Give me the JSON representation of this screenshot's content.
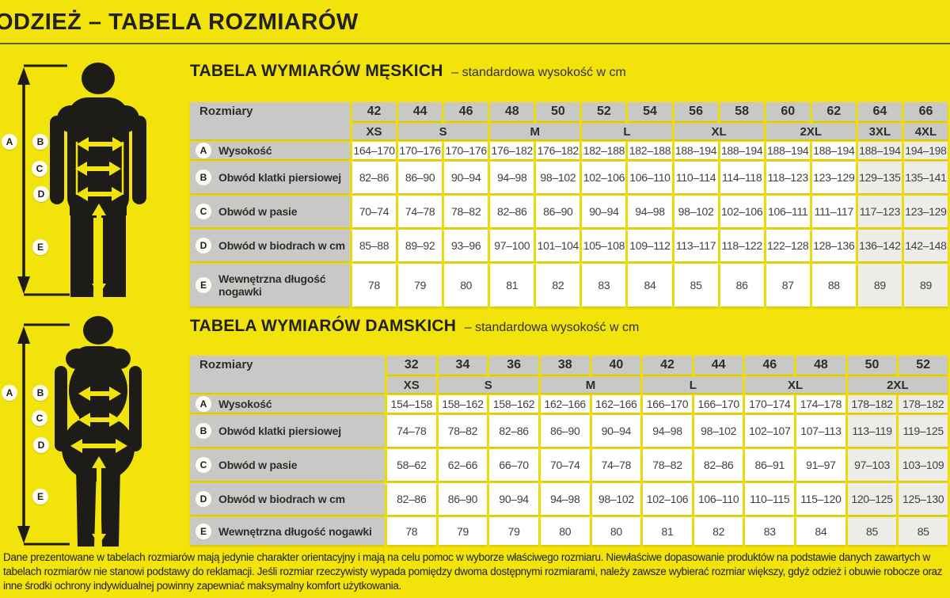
{
  "page_title": "ODZIEŻ – TABELA ROZMIARÓW",
  "colors": {
    "background": "#F2E30A",
    "header_cell": "#C8C8C6",
    "value_cell": "#FFFFFF",
    "value_cell_tint": "#ECECE9",
    "text_dark": "#2B2A26",
    "figure_black": "#1E1C18"
  },
  "figure_letters": [
    "A",
    "B",
    "C",
    "D",
    "E"
  ],
  "tables": [
    {
      "id": "male",
      "title": "TABELA WYMIARÓW MĘSKICH",
      "subtitle": "– standardowa wysokość w cm",
      "corner_label": "Rozmiary",
      "sizes": [
        "42",
        "44",
        "46",
        "48",
        "50",
        "52",
        "54",
        "56",
        "58",
        "60",
        "62",
        "64",
        "66"
      ],
      "size_groups": [
        {
          "label": "XS",
          "span": 1
        },
        {
          "label": "S",
          "span": 2
        },
        {
          "label": "M",
          "span": 2
        },
        {
          "label": "L",
          "span": 2
        },
        {
          "label": "XL",
          "span": 2
        },
        {
          "label": "2XL",
          "span": 2
        },
        {
          "label": "3XL",
          "span": 1
        },
        {
          "label": "4XL",
          "span": 1
        }
      ],
      "rows": [
        {
          "letter": "A",
          "label": "Wysokość",
          "values": [
            "164–170",
            "170–176",
            "170–176",
            "176–182",
            "176–182",
            "182–188",
            "182–188",
            "188–194",
            "188–194",
            "188–194",
            "188–194",
            "188–194",
            "194–198"
          ]
        },
        {
          "letter": "B",
          "label": "Obwód klatki piersiowej",
          "values": [
            "82–86",
            "86–90",
            "90–94",
            "94–98",
            "98–102",
            "102–106",
            "106–110",
            "110–114",
            "114–118",
            "118–123",
            "123–129",
            "129–135",
            "135–141"
          ]
        },
        {
          "letter": "C",
          "label": "Obwód w pasie",
          "values": [
            "70–74",
            "74–78",
            "78–82",
            "82–86",
            "86–90",
            "90–94",
            "94–98",
            "98–102",
            "102–106",
            "106–111",
            "111–117",
            "117–123",
            "123–129"
          ]
        },
        {
          "letter": "D",
          "label": "Obwód w biodrach w cm",
          "values": [
            "85–88",
            "89–92",
            "93–96",
            "97–100",
            "101–104",
            "105–108",
            "109–112",
            "113–117",
            "118–122",
            "122–128",
            "128–136",
            "136–142",
            "142–148"
          ]
        },
        {
          "letter": "E",
          "label": "Wewnętrzna długość nogawki",
          "values": [
            "78",
            "79",
            "80",
            "81",
            "82",
            "83",
            "84",
            "85",
            "86",
            "87",
            "88",
            "89",
            "89"
          ]
        }
      ],
      "label_col_width": 202,
      "tinted_columns": [
        11,
        12
      ]
    },
    {
      "id": "female",
      "title": "TABELA WYMIARÓW DAMSKICH",
      "subtitle": "– standardowa wysokość w cm",
      "corner_label": "Rozmiary",
      "sizes": [
        "32",
        "34",
        "36",
        "38",
        "40",
        "42",
        "44",
        "46",
        "48",
        "50",
        "52"
      ],
      "size_groups": [
        {
          "label": "XS",
          "span": 1
        },
        {
          "label": "S",
          "span": 2
        },
        {
          "label": "M",
          "span": 2
        },
        {
          "label": "L",
          "span": 2
        },
        {
          "label": "XL",
          "span": 2
        },
        {
          "label": "2XL",
          "span": 2
        }
      ],
      "rows": [
        {
          "letter": "A",
          "label": "Wysokość",
          "values": [
            "154–158",
            "158–162",
            "158–162",
            "162–166",
            "162–166",
            "166–170",
            "166–170",
            "170–174",
            "174–178",
            "178–182",
            "178–182"
          ]
        },
        {
          "letter": "B",
          "label": "Obwód klatki piersiowej",
          "values": [
            "74–78",
            "78–82",
            "82–86",
            "86–90",
            "90–94",
            "94–98",
            "98–102",
            "102–107",
            "107–113",
            "113–119",
            "119–125"
          ]
        },
        {
          "letter": "C",
          "label": "Obwód w pasie",
          "values": [
            "58–62",
            "62–66",
            "66–70",
            "70–74",
            "74–78",
            "78–82",
            "82–86",
            "86–91",
            "91–97",
            "97–103",
            "103–109"
          ]
        },
        {
          "letter": "D",
          "label": "Obwód w biodrach w cm",
          "values": [
            "82–86",
            "86–90",
            "90–94",
            "94–98",
            "98–102",
            "102–106",
            "106–110",
            "110–115",
            "115–120",
            "120–125",
            "125–130"
          ]
        },
        {
          "letter": "E",
          "label": "Wewnętrzna długość nogawki",
          "values": [
            "78",
            "79",
            "79",
            "80",
            "80",
            "81",
            "82",
            "83",
            "84",
            "85",
            "85"
          ]
        }
      ],
      "label_col_width": 246,
      "tinted_columns": [
        9,
        10
      ]
    }
  ],
  "footer": {
    "disclaimer": "Dane prezentowane w tabelach rozmiarów mają jedynie charakter orientacyjny i mają na celu pomoc w wyborze właściwego rozmiaru. Niewłaściwe dopasowanie produktów na podstawie danych zawartych w tabelach rozmiarów nie stanowi podstawy do reklamacji. Jeśli rozmiar rzeczywisty wypada pomiędzy dwoma dostępnymi rozmiarami, należy zawsze wybierać rozmiar większy, gdyż odzież i obuwie robocze oraz inne środki ochrony indywidualnej powinny zapewniać maksymalny komfort użytkowania."
  }
}
